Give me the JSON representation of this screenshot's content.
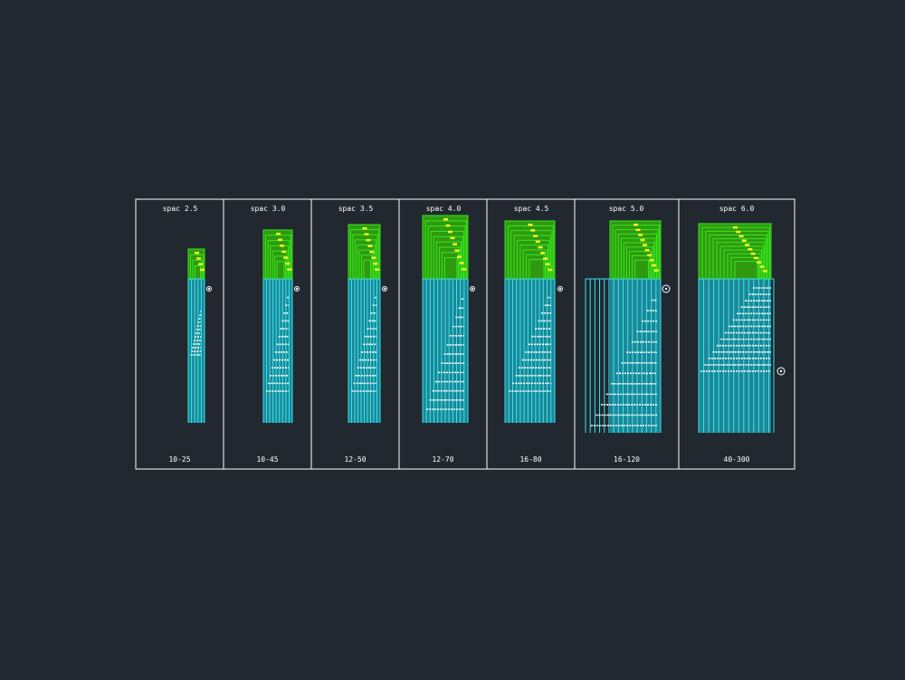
{
  "panels": [
    {
      "title": "spac 2.5",
      "range": "10-25"
    },
    {
      "title": "spac 3.0",
      "range": "10-45"
    },
    {
      "title": "spac 3.5",
      "range": "12-50"
    },
    {
      "title": "spac 4.0",
      "range": "12-70"
    },
    {
      "title": "spac 4.5",
      "range": "16-80"
    },
    {
      "title": "spac 5.0",
      "range": "16-120"
    },
    {
      "title": "spac 6.0",
      "range": "40-300"
    }
  ],
  "colors": {
    "background": "#212830",
    "frame": "#ffffff",
    "green_fill": "#2f9a10",
    "green_line": "#37e61e",
    "cyan_fill": "#1e8696",
    "cyan_line": "#35e5ee",
    "yellow_marks": "#f0f528",
    "white_marks": "#ffffff"
  }
}
